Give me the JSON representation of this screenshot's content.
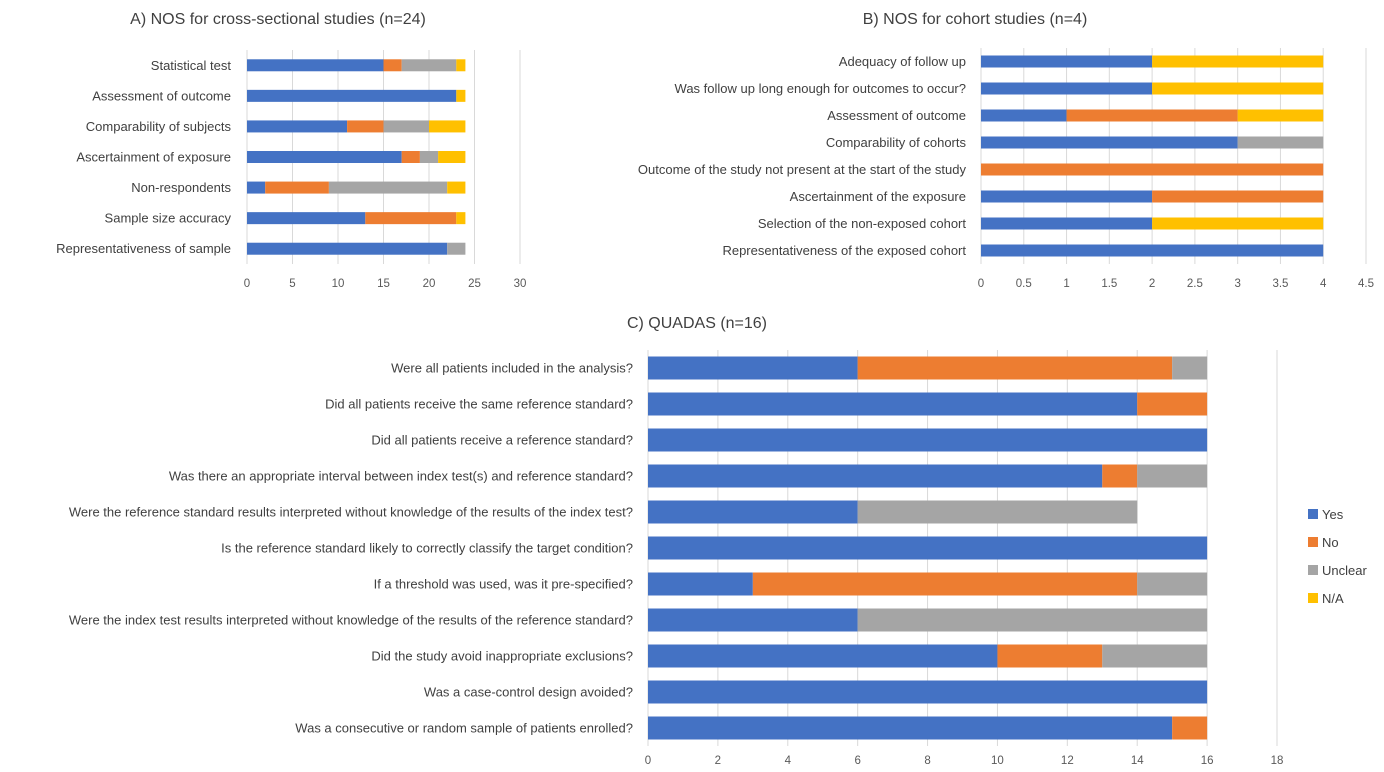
{
  "series_order": [
    "Yes",
    "No",
    "Unclear",
    "N/A"
  ],
  "colors": {
    "Yes": "#4472c4",
    "No": "#ed7d31",
    "Unclear": "#a5a5a5",
    "N/A": "#ffc000"
  },
  "legend": {
    "items": [
      {
        "name": "Yes",
        "color": "#4472c4"
      },
      {
        "name": "No",
        "color": "#ed7d31"
      },
      {
        "name": "Unclear",
        "color": "#a5a5a5"
      },
      {
        "name": "N/A",
        "color": "#ffc000"
      }
    ]
  },
  "chart_data": [
    {
      "id": "A",
      "type": "bar",
      "orientation": "horizontal",
      "stacked": true,
      "title": "A) NOS for cross-sectional studies (n=24)",
      "xlim": [
        0,
        30
      ],
      "xticks": [
        0,
        5,
        10,
        15,
        20,
        25,
        30
      ],
      "grid": true,
      "categories": [
        "Statistical test",
        "Assessment of outcome",
        "Comparability of subjects",
        "Ascertainment of exposure",
        "Non-respondents",
        "Sample size accuracy",
        "Representativeness of sample"
      ],
      "series": [
        {
          "name": "Yes",
          "values": [
            15,
            23,
            11,
            17,
            2,
            13,
            22
          ]
        },
        {
          "name": "No",
          "values": [
            2,
            0,
            4,
            2,
            7,
            10,
            0
          ]
        },
        {
          "name": "Unclear",
          "values": [
            6,
            0,
            5,
            2,
            13,
            0,
            2
          ]
        },
        {
          "name": "N/A",
          "values": [
            1,
            1,
            4,
            3,
            2,
            1,
            0
          ]
        }
      ]
    },
    {
      "id": "B",
      "type": "bar",
      "orientation": "horizontal",
      "stacked": true,
      "title": "B) NOS for cohort studies (n=4)",
      "xlim": [
        0,
        4.5
      ],
      "xticks": [
        "0",
        "0.5",
        "1",
        "1.5",
        "2",
        "2.5",
        "3",
        "3.5",
        "4",
        "4.5"
      ],
      "grid": true,
      "categories": [
        "Adequacy of follow up",
        "Was follow up long enough for outcomes to occur?",
        "Assessment of outcome",
        "Comparability of cohorts",
        "Outcome of the study not present at the start of the study",
        "Ascertainment of the exposure",
        "Selection of the non-exposed cohort",
        "Representativeness of the exposed cohort"
      ],
      "series": [
        {
          "name": "Yes",
          "values": [
            2,
            2,
            1,
            3,
            0,
            2,
            2,
            4
          ]
        },
        {
          "name": "No",
          "values": [
            0,
            0,
            2,
            0,
            4,
            2,
            0,
            0
          ]
        },
        {
          "name": "Unclear",
          "values": [
            0,
            0,
            0,
            1,
            0,
            0,
            0,
            0
          ]
        },
        {
          "name": "N/A",
          "values": [
            2,
            2,
            1,
            0,
            0,
            0,
            2,
            0
          ]
        }
      ]
    },
    {
      "id": "C",
      "type": "bar",
      "orientation": "horizontal",
      "stacked": true,
      "title": "C) QUADAS (n=16)",
      "xlim": [
        0,
        18
      ],
      "xticks": [
        0,
        2,
        4,
        6,
        8,
        10,
        12,
        14,
        16,
        18
      ],
      "grid": true,
      "legend_position": "right",
      "categories": [
        "Were all patients included in the analysis?",
        "Did all patients receive the same reference standard?",
        "Did all patients receive a reference standard?",
        "Was there an appropriate interval between index test(s) and reference standard?",
        "Were the reference standard results interpreted without knowledge of the results of the index test?",
        "Is the reference standard likely to correctly classify the target condition?",
        "If a threshold was used, was it pre-specified?",
        "Were the index test results interpreted without knowledge of the results of the reference standard?",
        "Did the study avoid inappropriate exclusions?",
        "Was a case-control design avoided?",
        "Was a consecutive or random sample of patients enrolled?"
      ],
      "series": [
        {
          "name": "Yes",
          "values": [
            6,
            14,
            16,
            13,
            6,
            16,
            3,
            6,
            10,
            16,
            15
          ]
        },
        {
          "name": "No",
          "values": [
            9,
            2,
            0,
            1,
            0,
            0,
            11,
            0,
            3,
            0,
            1
          ]
        },
        {
          "name": "Unclear",
          "values": [
            1,
            0,
            0,
            2,
            8,
            0,
            2,
            10,
            3,
            0,
            0
          ]
        },
        {
          "name": "N/A",
          "values": [
            0,
            0,
            0,
            0,
            0,
            0,
            0,
            0,
            0,
            0,
            0
          ]
        }
      ]
    }
  ]
}
